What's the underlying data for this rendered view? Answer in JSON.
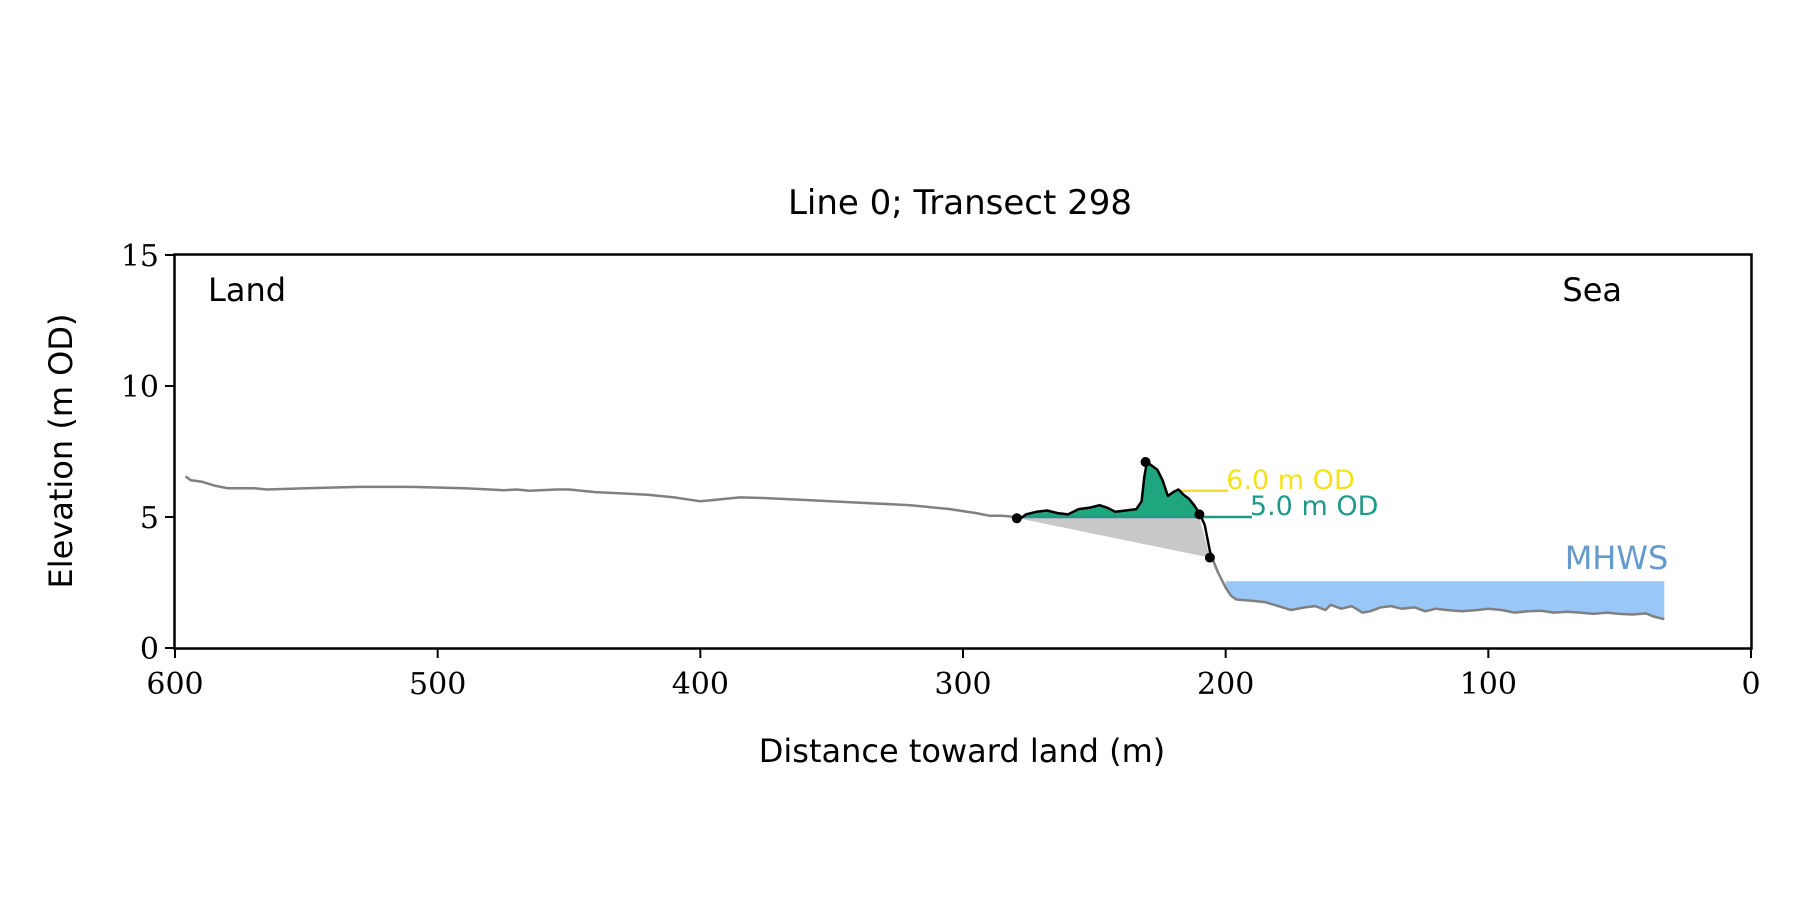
{
  "chart_data": {
    "type": "line",
    "title": "Line 0; Transect 298",
    "xlabel": "Distance toward land (m)",
    "ylabel": "Elevation (m OD)",
    "xlim": [
      600,
      0
    ],
    "ylim": [
      0,
      15
    ],
    "x_ticks": [
      "600",
      "500",
      "400",
      "300",
      "200",
      "100",
      "0"
    ],
    "y_ticks": [
      "0",
      "5",
      "10",
      "15"
    ],
    "grid": false,
    "corner_labels": {
      "left": "Land",
      "right": "Sea"
    },
    "colors": {
      "profile": "#808080",
      "dune_profile": "#000000",
      "dune_fill": "#1fa67f",
      "wedge_fill": "#c8c8c8",
      "mhws_fill": "#99c8f8",
      "mhws_text": "#6699cc",
      "level6": "#f5e01e",
      "level5": "#1f9a8a"
    },
    "profile": [
      [
        596,
        6.55
      ],
      [
        594,
        6.4
      ],
      [
        590,
        6.35
      ],
      [
        585,
        6.2
      ],
      [
        580,
        6.1
      ],
      [
        575,
        6.1
      ],
      [
        570,
        6.1
      ],
      [
        565,
        6.05
      ],
      [
        550,
        6.1
      ],
      [
        530,
        6.15
      ],
      [
        510,
        6.15
      ],
      [
        490,
        6.1
      ],
      [
        480,
        6.05
      ],
      [
        475,
        6.02
      ],
      [
        470,
        6.05
      ],
      [
        465,
        6.0
      ],
      [
        455,
        6.05
      ],
      [
        450,
        6.05
      ],
      [
        440,
        5.95
      ],
      [
        430,
        5.9
      ],
      [
        420,
        5.85
      ],
      [
        410,
        5.75
      ],
      [
        400,
        5.6
      ],
      [
        395,
        5.65
      ],
      [
        385,
        5.75
      ],
      [
        375,
        5.72
      ],
      [
        360,
        5.65
      ],
      [
        340,
        5.55
      ],
      [
        320,
        5.45
      ],
      [
        305,
        5.3
      ],
      [
        295,
        5.15
      ],
      [
        290,
        5.05
      ],
      [
        285,
        5.05
      ],
      [
        280,
        5.0
      ],
      [
        278,
        4.95
      ]
    ],
    "dune_profile": [
      [
        278,
        4.95
      ],
      [
        276,
        5.1
      ],
      [
        272,
        5.2
      ],
      [
        268,
        5.25
      ],
      [
        264,
        5.15
      ],
      [
        260,
        5.1
      ],
      [
        256,
        5.3
      ],
      [
        252,
        5.35
      ],
      [
        248,
        5.45
      ],
      [
        245,
        5.35
      ],
      [
        242,
        5.2
      ],
      [
        238,
        5.25
      ],
      [
        234,
        5.3
      ],
      [
        232,
        5.6
      ],
      [
        231,
        6.5
      ],
      [
        230,
        7.1
      ],
      [
        228,
        6.95
      ],
      [
        226,
        6.8
      ],
      [
        224,
        6.4
      ],
      [
        222,
        5.8
      ],
      [
        220,
        5.95
      ],
      [
        218,
        6.05
      ],
      [
        216,
        5.85
      ],
      [
        214,
        5.7
      ],
      [
        212,
        5.45
      ],
      [
        210,
        5.15
      ],
      [
        208,
        4.7
      ],
      [
        206,
        3.7
      ],
      [
        205,
        3.4
      ]
    ],
    "nearshore_profile": [
      [
        205,
        3.4
      ],
      [
        203,
        2.9
      ],
      [
        200,
        2.3
      ],
      [
        198,
        2.0
      ],
      [
        196,
        1.85
      ],
      [
        190,
        1.8
      ],
      [
        185,
        1.75
      ],
      [
        180,
        1.6
      ],
      [
        175,
        1.45
      ],
      [
        170,
        1.55
      ],
      [
        166,
        1.6
      ],
      [
        162,
        1.45
      ],
      [
        160,
        1.65
      ],
      [
        156,
        1.5
      ],
      [
        152,
        1.6
      ],
      [
        148,
        1.35
      ],
      [
        145,
        1.4
      ],
      [
        141,
        1.55
      ],
      [
        137,
        1.6
      ],
      [
        133,
        1.5
      ],
      [
        128,
        1.55
      ],
      [
        124,
        1.4
      ],
      [
        120,
        1.5
      ],
      [
        116,
        1.45
      ],
      [
        110,
        1.4
      ],
      [
        104,
        1.45
      ],
      [
        100,
        1.5
      ],
      [
        95,
        1.45
      ],
      [
        90,
        1.35
      ],
      [
        85,
        1.4
      ],
      [
        80,
        1.42
      ],
      [
        75,
        1.35
      ],
      [
        70,
        1.38
      ],
      [
        65,
        1.35
      ],
      [
        60,
        1.3
      ],
      [
        55,
        1.35
      ],
      [
        50,
        1.3
      ],
      [
        45,
        1.28
      ],
      [
        40,
        1.32
      ],
      [
        37,
        1.2
      ],
      [
        35,
        1.15
      ],
      [
        33,
        1.1
      ]
    ],
    "markers": [
      [
        279.5,
        4.95
      ],
      [
        230.5,
        7.1
      ],
      [
        210,
        5.1
      ],
      [
        206,
        3.45
      ]
    ],
    "dune_base_level": 5.0,
    "dune_x_range": [
      279,
      210
    ],
    "wedge": [
      [
        279,
        4.95
      ],
      [
        210,
        5.0
      ],
      [
        206,
        3.45
      ]
    ],
    "levels": [
      {
        "label": "6.0 m OD",
        "y": 6.0,
        "x_from": 218,
        "x_to": 199
      },
      {
        "label": "5.0 m OD",
        "y": 5.0,
        "x_from": 279,
        "x_to": 190
      }
    ],
    "mhws": {
      "label": "MHWS",
      "level": 2.55,
      "x_from": 200,
      "x_to": 33
    }
  }
}
